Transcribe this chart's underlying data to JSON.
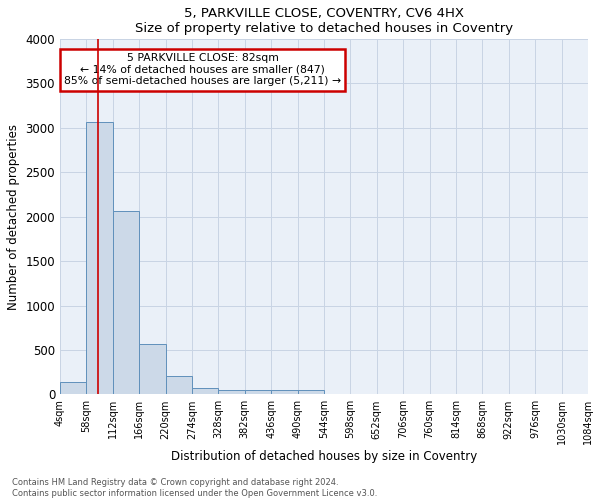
{
  "title": "5, PARKVILLE CLOSE, COVENTRY, CV6 4HX",
  "subtitle": "Size of property relative to detached houses in Coventry",
  "xlabel": "Distribution of detached houses by size in Coventry",
  "ylabel": "Number of detached properties",
  "footnote": "Contains HM Land Registry data © Crown copyright and database right 2024.\nContains public sector information licensed under the Open Government Licence v3.0.",
  "bin_edges": [
    4,
    58,
    112,
    166,
    220,
    274,
    328,
    382,
    436,
    490,
    544,
    598,
    652,
    706,
    760,
    814,
    868,
    922,
    976,
    1030,
    1084
  ],
  "bar_heights": [
    140,
    3070,
    2060,
    570,
    210,
    75,
    55,
    45,
    45,
    45,
    0,
    0,
    0,
    0,
    0,
    0,
    0,
    0,
    0,
    0
  ],
  "bar_color": "#ccd9e8",
  "bar_edge_color": "#6090bb",
  "grid_color": "#c8d4e4",
  "background_color": "#eaf0f8",
  "property_size": 82,
  "vline_color": "#cc0000",
  "annotation_text": "5 PARKVILLE CLOSE: 82sqm\n← 14% of detached houses are smaller (847)\n85% of semi-detached houses are larger (5,211) →",
  "annotation_box_color": "#cc0000",
  "ylim": [
    0,
    4000
  ],
  "yticks": [
    0,
    500,
    1000,
    1500,
    2000,
    2500,
    3000,
    3500,
    4000
  ],
  "xtick_labels": [
    "4sqm",
    "58sqm",
    "112sqm",
    "166sqm",
    "220sqm",
    "274sqm",
    "328sqm",
    "382sqm",
    "436sqm",
    "490sqm",
    "544sqm",
    "598sqm",
    "652sqm",
    "706sqm",
    "760sqm",
    "814sqm",
    "868sqm",
    "922sqm",
    "976sqm",
    "1030sqm",
    "1084sqm"
  ]
}
